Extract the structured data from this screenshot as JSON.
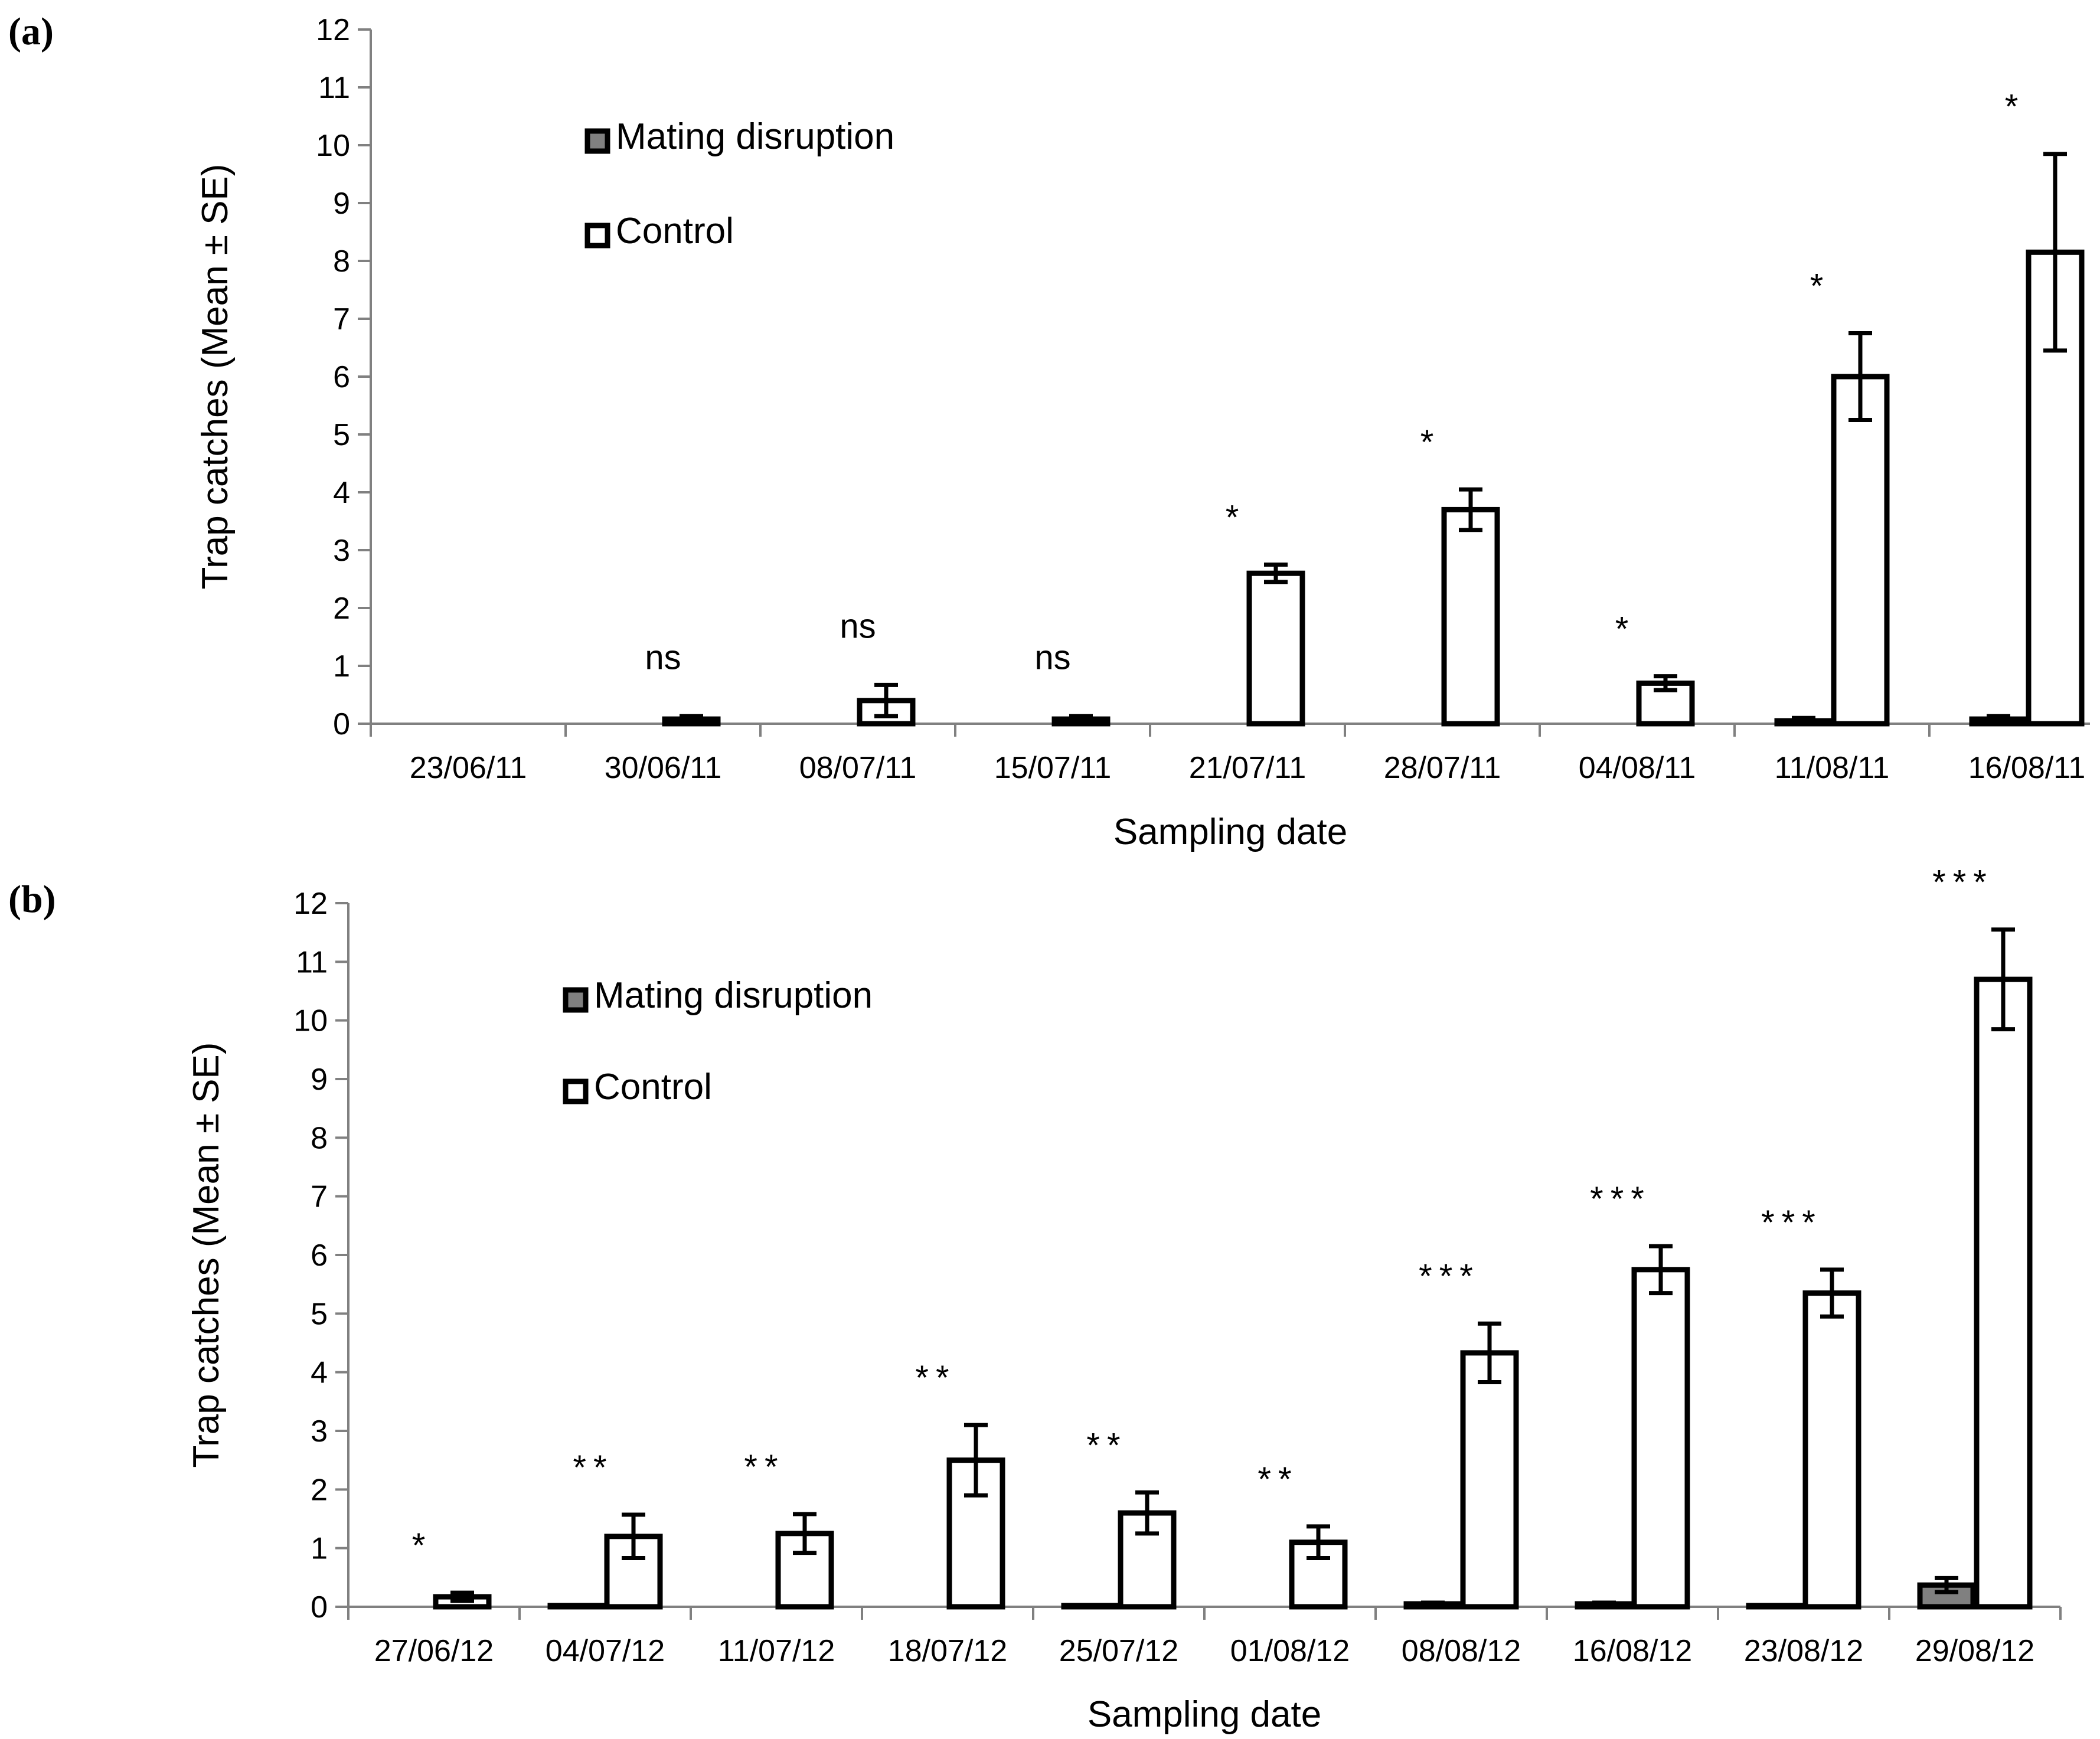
{
  "chart_data": [
    {
      "panel_label": "(a)",
      "type": "bar",
      "xlabel": "Sampling date",
      "ylabel": "Trap catches (Mean ± SE)",
      "ylim": [
        0,
        12
      ],
      "yticks": [
        "0",
        "1",
        "2",
        "3",
        "4",
        "5",
        "6",
        "7",
        "8",
        "9",
        "10",
        "11",
        "12"
      ],
      "legend": [
        "Mating disruption",
        "Control"
      ],
      "legend_position": "top-left",
      "colors": {
        "mating_disruption": "#808080",
        "control": "#ffffff"
      },
      "categories": [
        "23/06/11",
        "30/06/11",
        "08/07/11",
        "15/07/11",
        "21/07/11",
        "28/07/11",
        "04/08/11",
        "11/08/11",
        "16/08/11"
      ],
      "series": [
        {
          "name": "Mating disruption",
          "values": [
            0,
            0,
            0,
            0,
            0,
            0,
            0,
            0.05,
            0.08
          ],
          "se": [
            0,
            0,
            0,
            0,
            0,
            0,
            0,
            0.05,
            0.05
          ]
        },
        {
          "name": "Control",
          "values": [
            0,
            0.08,
            0.4,
            0.08,
            2.6,
            3.7,
            0.7,
            6.0,
            8.15
          ],
          "se": [
            0,
            0.05,
            0.27,
            0.05,
            0.15,
            0.35,
            0.12,
            0.75,
            1.7
          ]
        }
      ],
      "annotations": [
        "",
        "ns",
        "ns",
        "ns",
        "*",
        "*",
        "*",
        "*",
        "*"
      ]
    },
    {
      "panel_label": "(b)",
      "type": "bar",
      "xlabel": "Sampling date",
      "ylabel": "Trap catches (Mean ± SE)",
      "ylim": [
        0,
        12
      ],
      "yticks": [
        "0",
        "1",
        "2",
        "3",
        "4",
        "5",
        "6",
        "7",
        "8",
        "9",
        "10",
        "11",
        "12"
      ],
      "legend": [
        "Mating disruption",
        "Control"
      ],
      "legend_position": "top-left",
      "colors": {
        "mating_disruption": "#808080",
        "control": "#ffffff"
      },
      "categories": [
        "27/06/12",
        "04/07/12",
        "11/07/12",
        "18/07/12",
        "25/07/12",
        "01/08/12",
        "08/08/12",
        "16/08/12",
        "23/08/12",
        "29/08/12"
      ],
      "series": [
        {
          "name": "Mating disruption",
          "values": [
            0,
            0.02,
            0,
            0,
            0.02,
            0,
            0.05,
            0.05,
            0.02,
            0.37
          ],
          "se": [
            0,
            0,
            0,
            0,
            0,
            0,
            0.02,
            0.02,
            0,
            0.12
          ]
        },
        {
          "name": "Control",
          "values": [
            0.17,
            1.2,
            1.25,
            2.5,
            1.6,
            1.1,
            4.33,
            5.75,
            5.35,
            10.7
          ],
          "se": [
            0.07,
            0.37,
            0.33,
            0.6,
            0.35,
            0.27,
            0.5,
            0.4,
            0.4,
            0.85
          ]
        }
      ],
      "annotations": [
        "*",
        "**",
        "**",
        "**",
        "**",
        "**",
        "***",
        "***",
        "***",
        "***"
      ]
    }
  ]
}
